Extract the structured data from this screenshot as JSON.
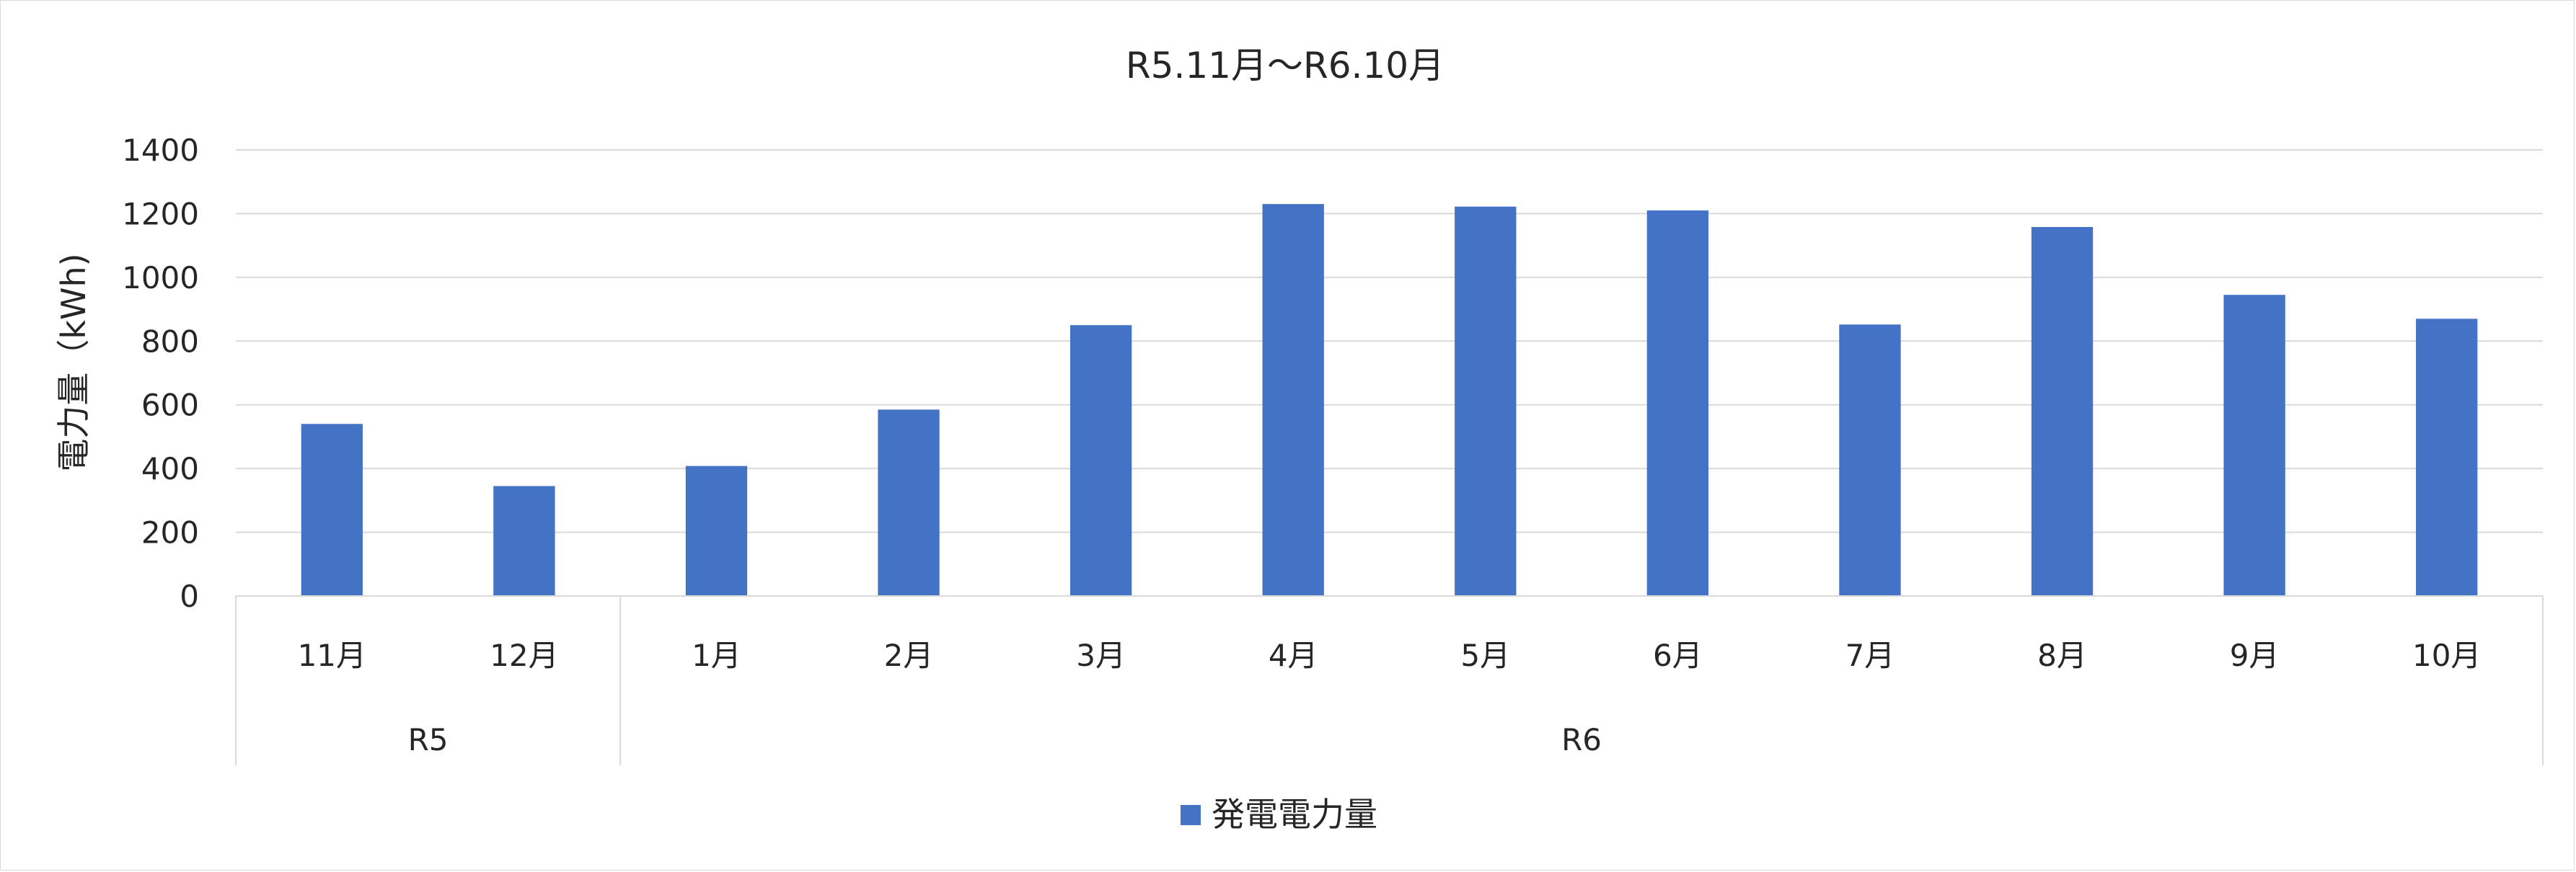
{
  "chart_data": {
    "type": "bar",
    "title": "R5.11月～R6.10月",
    "ylabel": "電力量（kWh)",
    "xlabel": "",
    "ylim": [
      0,
      1400
    ],
    "yticks": [
      0,
      200,
      400,
      600,
      800,
      1000,
      1200,
      1400
    ],
    "grid": true,
    "legend_position": "bottom",
    "categories": [
      "11月",
      "12月",
      "1月",
      "2月",
      "3月",
      "4月",
      "5月",
      "6月",
      "7月",
      "8月",
      "9月",
      "10月"
    ],
    "groups": [
      {
        "label": "R5",
        "count": 2
      },
      {
        "label": "R6",
        "count": 10
      }
    ],
    "series": [
      {
        "name": "発電電力量",
        "color": "#4472C4",
        "values": [
          540,
          345,
          408,
          585,
          850,
          1230,
          1222,
          1210,
          852,
          1158,
          945,
          870
        ]
      }
    ]
  }
}
